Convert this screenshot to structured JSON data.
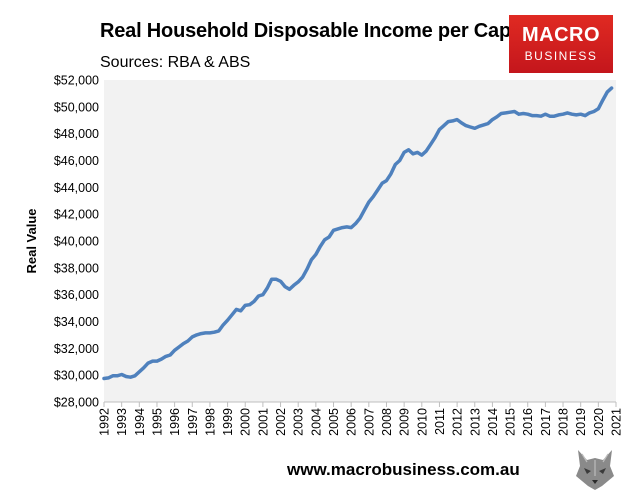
{
  "title": "Real Household Disposable Income per Capita",
  "subtitle": "Sources: RBA & ABS",
  "logo": {
    "line1": "MACRO",
    "line2": "BUSINESS"
  },
  "footer_url": "www.macrobusiness.com.au",
  "colors": {
    "line": "#4f81bd",
    "plot_bg": "#f2f2f2",
    "logo_bg": "#d21f22"
  },
  "icons": {
    "wolf": "wolf-logo-icon"
  },
  "chart_data": {
    "type": "line",
    "title": "Real Household Disposable Income per Capita",
    "ylabel": "Real Value",
    "xlabel": "",
    "ylim": [
      28000,
      52000
    ],
    "xlim": [
      1992,
      2021
    ],
    "grid": false,
    "x_ticks": [
      "1992",
      "1993",
      "1994",
      "1995",
      "1996",
      "1997",
      "1998",
      "1999",
      "2000",
      "2001",
      "2002",
      "2003",
      "2004",
      "2005",
      "2006",
      "2007",
      "2008",
      "2009",
      "2010",
      "2011",
      "2012",
      "2013",
      "2014",
      "2015",
      "2016",
      "2017",
      "2018",
      "2019",
      "2020",
      "2021"
    ],
    "y_ticks": [
      "$28,000",
      "$30,000",
      "$32,000",
      "$34,000",
      "$36,000",
      "$38,000",
      "$40,000",
      "$42,000",
      "$44,000",
      "$46,000",
      "$48,000",
      "$50,000",
      "$52,000"
    ],
    "series": [
      {
        "x": [
          1992.0,
          1992.25,
          1992.5,
          1992.75,
          1993.0,
          1993.25,
          1993.5,
          1993.75,
          1994.0,
          1994.25,
          1994.5,
          1994.75,
          1995.0,
          1995.25,
          1995.5,
          1995.75,
          1996.0,
          1996.25,
          1996.5,
          1996.75,
          1997.0,
          1997.25,
          1997.5,
          1997.75,
          1998.0,
          1998.25,
          1998.5,
          1998.75,
          1999.0,
          1999.25,
          1999.5,
          1999.75,
          2000.0,
          2000.25,
          2000.5,
          2000.75,
          2001.0,
          2001.25,
          2001.5,
          2001.75,
          2002.0,
          2002.25,
          2002.5,
          2002.75,
          2003.0,
          2003.25,
          2003.5,
          2003.75,
          2004.0,
          2004.25,
          2004.5,
          2004.75,
          2005.0,
          2005.25,
          2005.5,
          2005.75,
          2006.0,
          2006.25,
          2006.5,
          2006.75,
          2007.0,
          2007.25,
          2007.5,
          2007.75,
          2008.0,
          2008.25,
          2008.5,
          2008.75,
          2009.0,
          2009.25,
          2009.5,
          2009.75,
          2010.0,
          2010.25,
          2010.5,
          2010.75,
          2011.0,
          2011.25,
          2011.5,
          2011.75,
          2012.0,
          2012.25,
          2012.5,
          2012.75,
          2013.0,
          2013.25,
          2013.5,
          2013.75,
          2014.0,
          2014.25,
          2014.5,
          2014.75,
          2015.0,
          2015.25,
          2015.5,
          2015.75,
          2016.0,
          2016.25,
          2016.5,
          2016.75,
          2017.0,
          2017.25,
          2017.5,
          2017.75,
          2018.0,
          2018.25,
          2018.5,
          2018.75,
          2019.0,
          2019.25,
          2019.5,
          2019.75,
          2020.0,
          2020.25,
          2020.5,
          2020.75
        ],
        "y": [
          29750,
          29800,
          29950,
          29950,
          30050,
          29900,
          29850,
          29950,
          30250,
          30550,
          30900,
          31050,
          31050,
          31200,
          31400,
          31500,
          31850,
          32100,
          32350,
          32550,
          32850,
          33000,
          33100,
          33150,
          33150,
          33200,
          33300,
          33750,
          34100,
          34500,
          34900,
          34800,
          35200,
          35250,
          35500,
          35900,
          36000,
          36500,
          37150,
          37150,
          37000,
          36600,
          36400,
          36700,
          36950,
          37300,
          37900,
          38600,
          39000,
          39600,
          40100,
          40300,
          40800,
          40900,
          41000,
          41050,
          41000,
          41300,
          41700,
          42300,
          42900,
          43300,
          43800,
          44300,
          44500,
          45000,
          45700,
          46000,
          46600,
          46800,
          46500,
          46600,
          46400,
          46700,
          47200,
          47700,
          48300,
          48600,
          48900,
          48950,
          49050,
          48800,
          48600,
          48500,
          48400,
          48550,
          48650,
          48750,
          49050,
          49250,
          49500,
          49550,
          49600,
          49650,
          49450,
          49500,
          49450,
          49350,
          49350,
          49300,
          49450,
          49300,
          49300,
          49400,
          49450,
          49550,
          49450,
          49400,
          49450,
          49350,
          49550,
          49650,
          49850,
          50500,
          51100,
          51400
        ]
      }
    ]
  }
}
